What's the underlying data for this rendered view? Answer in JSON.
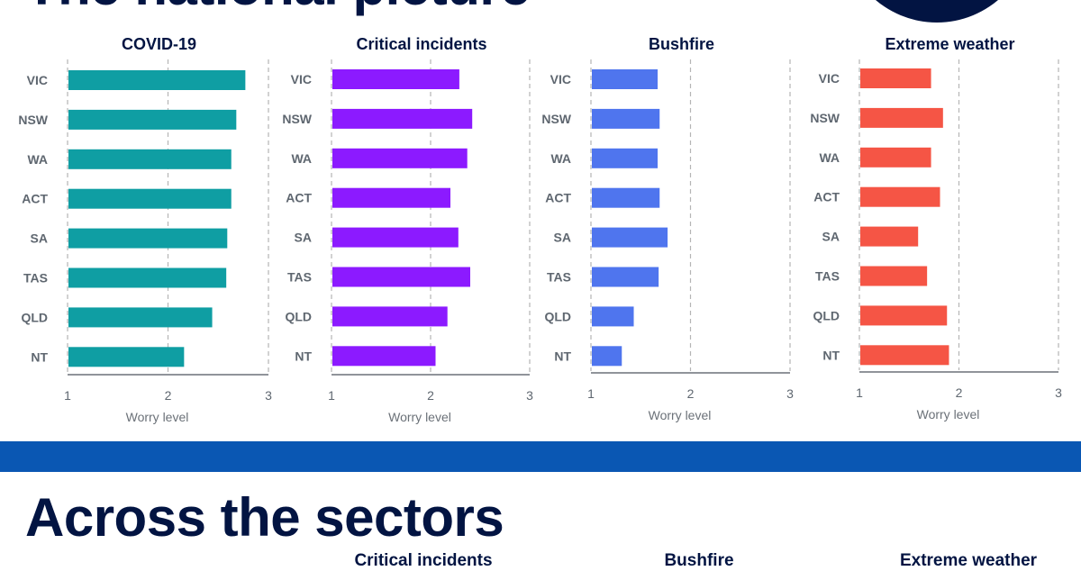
{
  "header": {
    "title": "The national picture",
    "circle_color": "#021442"
  },
  "section2": {
    "title": "Across the sectors",
    "band_color": "#0a57b3",
    "partial_titles": [
      "Critical incidents",
      "Bushfire",
      "Extreme weather"
    ]
  },
  "chart_data": [
    {
      "type": "bar",
      "orientation": "horizontal",
      "title": "COVID-19",
      "categories": [
        "VIC",
        "NSW",
        "WA",
        "ACT",
        "SA",
        "TAS",
        "QLD",
        "NT"
      ],
      "values": [
        2.77,
        2.68,
        2.63,
        2.63,
        2.59,
        2.58,
        2.44,
        2.16
      ],
      "xlabel": "Worry level",
      "xlim": [
        1,
        3
      ],
      "xticks": [
        1,
        2,
        3
      ],
      "grid": true,
      "color": "#0f9ea3"
    },
    {
      "type": "bar",
      "orientation": "horizontal",
      "title": "Critical incidents",
      "categories": [
        "VIC",
        "NSW",
        "WA",
        "ACT",
        "SA",
        "TAS",
        "QLD",
        "NT"
      ],
      "values": [
        2.29,
        2.42,
        2.37,
        2.2,
        2.28,
        2.4,
        2.17,
        2.05
      ],
      "xlabel": "Worry level",
      "xlim": [
        1,
        3
      ],
      "xticks": [
        1,
        2,
        3
      ],
      "grid": true,
      "color": "#8c1aff"
    },
    {
      "type": "bar",
      "orientation": "horizontal",
      "title": "Bushfire",
      "categories": [
        "VIC",
        "NSW",
        "WA",
        "ACT",
        "SA",
        "TAS",
        "QLD",
        "NT"
      ],
      "values": [
        1.67,
        1.69,
        1.67,
        1.69,
        1.77,
        1.68,
        1.43,
        1.31
      ],
      "xlabel": "Worry level",
      "xlim": [
        1,
        3
      ],
      "xticks": [
        1,
        2,
        3
      ],
      "grid": true,
      "color": "#4f75ee"
    },
    {
      "type": "bar",
      "orientation": "horizontal",
      "title": "Extreme  weather",
      "categories": [
        "VIC",
        "NSW",
        "WA",
        "ACT",
        "SA",
        "TAS",
        "QLD",
        "NT"
      ],
      "values": [
        1.72,
        1.84,
        1.72,
        1.81,
        1.59,
        1.68,
        1.88,
        1.9
      ],
      "xlabel": "Worry level",
      "xlim": [
        1,
        3
      ],
      "xticks": [
        1,
        2,
        3
      ],
      "grid": true,
      "color": "#f55545"
    }
  ]
}
